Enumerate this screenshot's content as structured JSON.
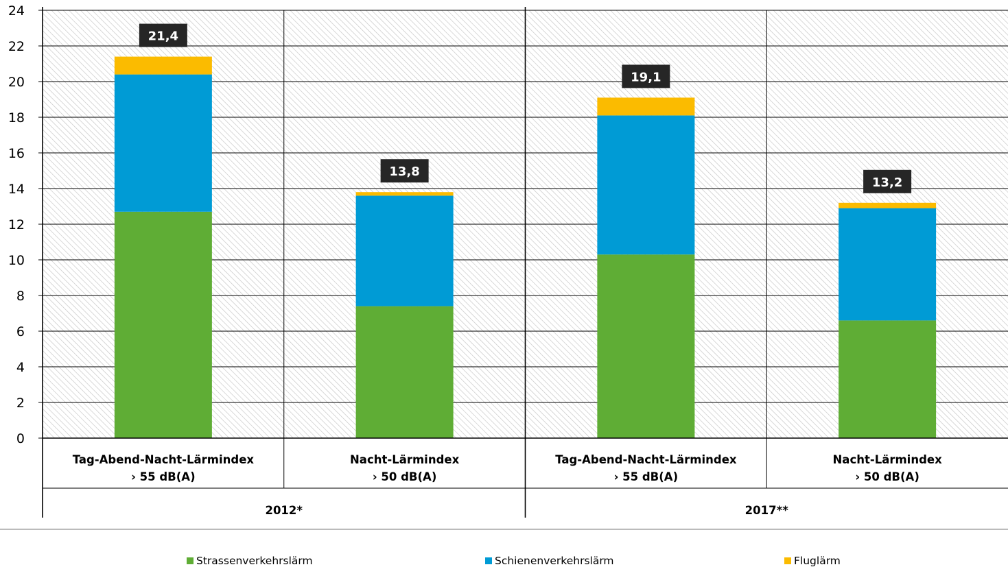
{
  "chart_data": {
    "type": "bar",
    "stacked": true,
    "ylim": [
      0,
      24
    ],
    "yticks": [
      "0",
      "2",
      "4",
      "6",
      "8",
      "10",
      "12",
      "14",
      "16",
      "18",
      "20",
      "22",
      "24"
    ],
    "grid": true,
    "groups": [
      {
        "label": "2012*",
        "categories": [
          0,
          1
        ]
      },
      {
        "label": "2017**",
        "categories": [
          2,
          3
        ]
      }
    ],
    "categories": [
      {
        "line1": "Tag-Abend-Nacht-Lärmindex",
        "line2": "› 55 dB(A)"
      },
      {
        "line1": "Nacht-Lärmindex",
        "line2": "› 50 dB(A)"
      },
      {
        "line1": "Tag-Abend-Nacht-Lärmindex",
        "line2": "› 55 dB(A)"
      },
      {
        "line1": "Nacht-Lärmindex",
        "line2": "› 50 dB(A)"
      }
    ],
    "series": [
      {
        "name": "Strassenverkehrslärm",
        "color": "#5fad35",
        "values": [
          12.7,
          7.4,
          10.3,
          6.6
        ]
      },
      {
        "name": "Schienenverkehrslärm",
        "color": "#009bd5",
        "values": [
          7.7,
          6.2,
          7.8,
          6.3
        ]
      },
      {
        "name": "Fluglärm",
        "color": "#fbbb00",
        "values": [
          1.0,
          0.2,
          1.0,
          0.3
        ]
      }
    ],
    "totals": [
      "21,4",
      "13,8",
      "19,1",
      "13,2"
    ],
    "legend_position": "bottom"
  }
}
